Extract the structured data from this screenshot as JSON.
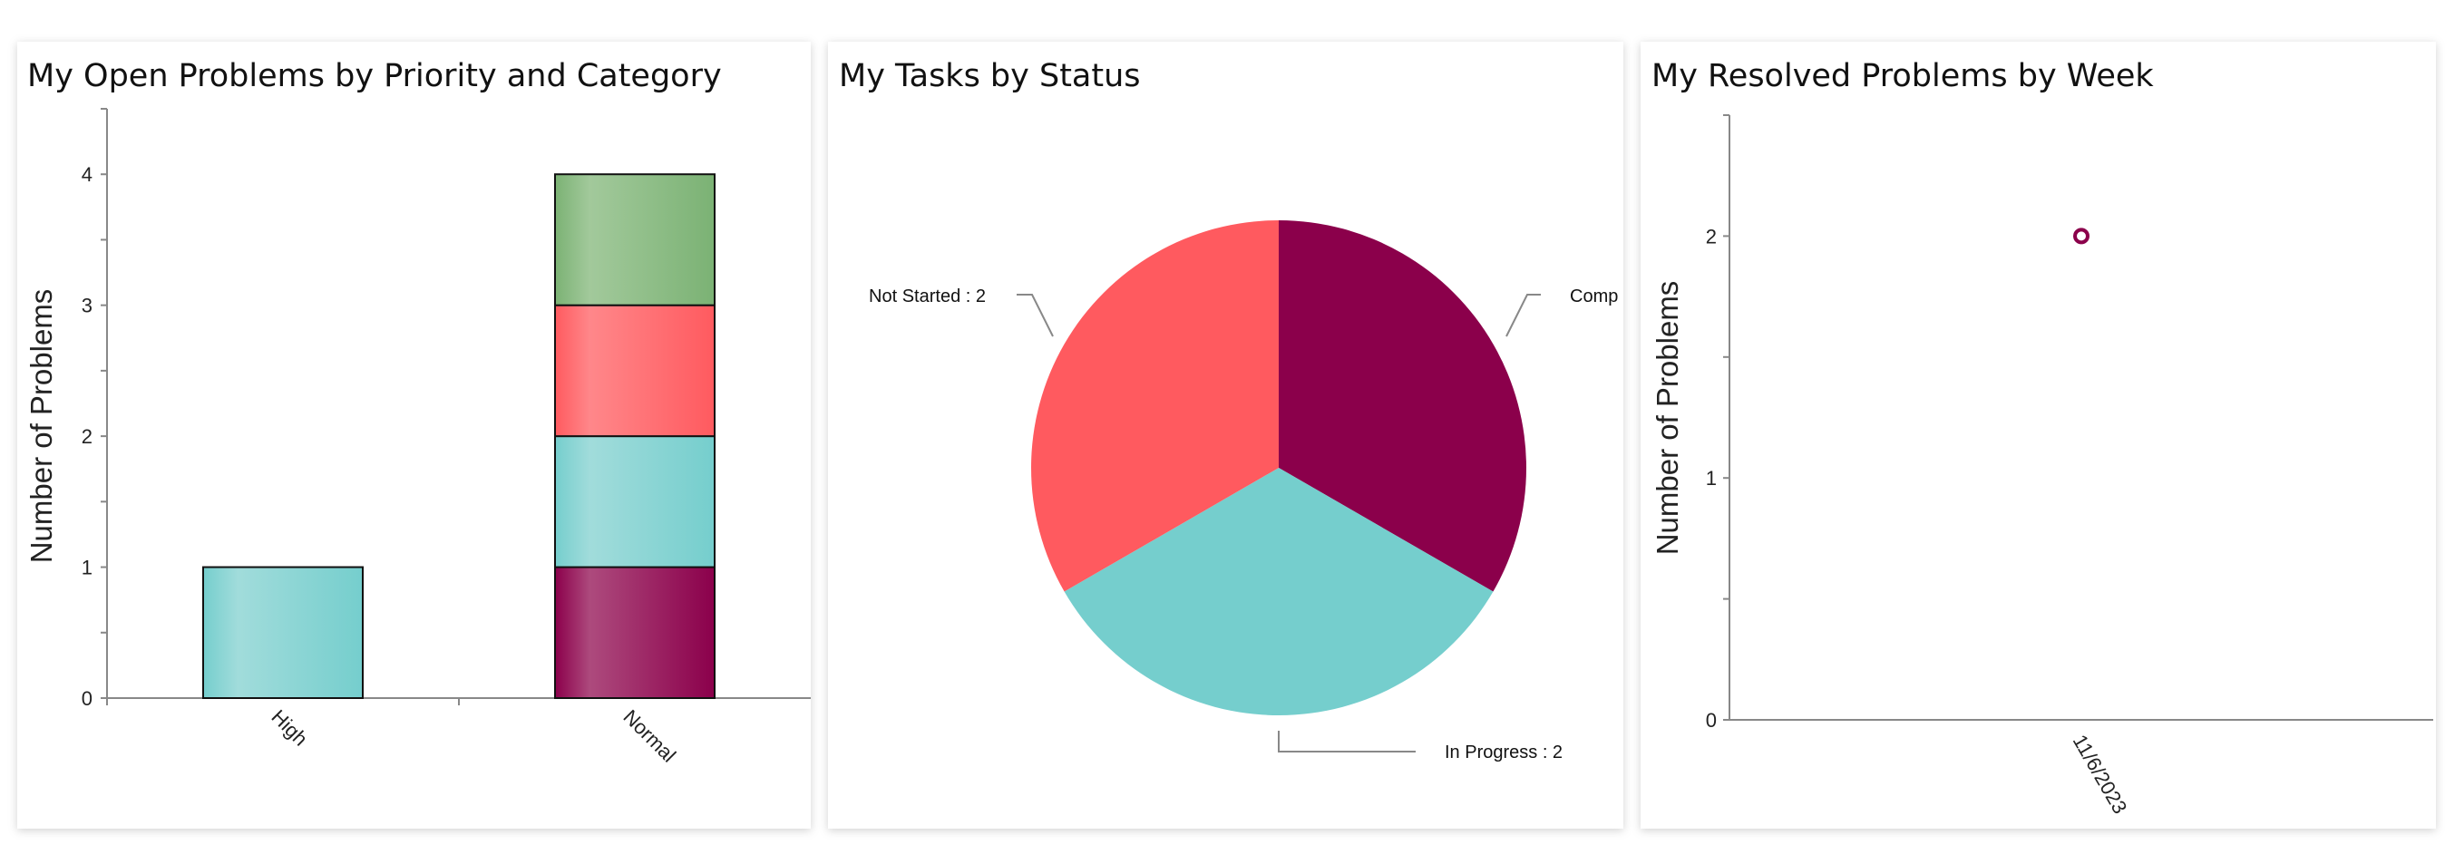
{
  "chart_data": [
    {
      "type": "bar",
      "stacked": true,
      "title": "My Open Problems by Priority and Category",
      "xlabel": "",
      "ylabel": "Number of Problems",
      "categories": [
        "High",
        "Normal"
      ],
      "ylim": [
        0,
        4.5
      ],
      "yticks": [
        "0",
        "1",
        "2",
        "3",
        "4"
      ],
      "series": [
        {
          "values": [
            0,
            1
          ],
          "color": "#8b004b"
        },
        {
          "values": [
            1,
            1
          ],
          "color": "#75cecd"
        },
        {
          "values": [
            0,
            1
          ],
          "color": "#ff5a5f"
        },
        {
          "values": [
            0,
            1
          ],
          "color": "#7bb274"
        }
      ],
      "grid": false
    },
    {
      "type": "pie",
      "title": "My Tasks by Status",
      "slices": [
        {
          "label": "Completed",
          "value": 2,
          "display": "Comp",
          "color": "#8b004b"
        },
        {
          "label": "In Progress",
          "value": 2,
          "display": "In Progress : 2",
          "color": "#75cecd"
        },
        {
          "label": "Not Started",
          "value": 2,
          "display": "Not Started : 2",
          "color": "#ff5a5f"
        }
      ]
    },
    {
      "type": "scatter",
      "title": "My Resolved Problems by Week",
      "xlabel": "",
      "ylabel": "Number of Problems",
      "categories": [
        "11/6/2023"
      ],
      "values": [
        2
      ],
      "ylim": [
        0,
        2.5
      ],
      "yticks": [
        "0",
        "1",
        "2"
      ],
      "color": "#8b004b",
      "grid": false
    }
  ]
}
